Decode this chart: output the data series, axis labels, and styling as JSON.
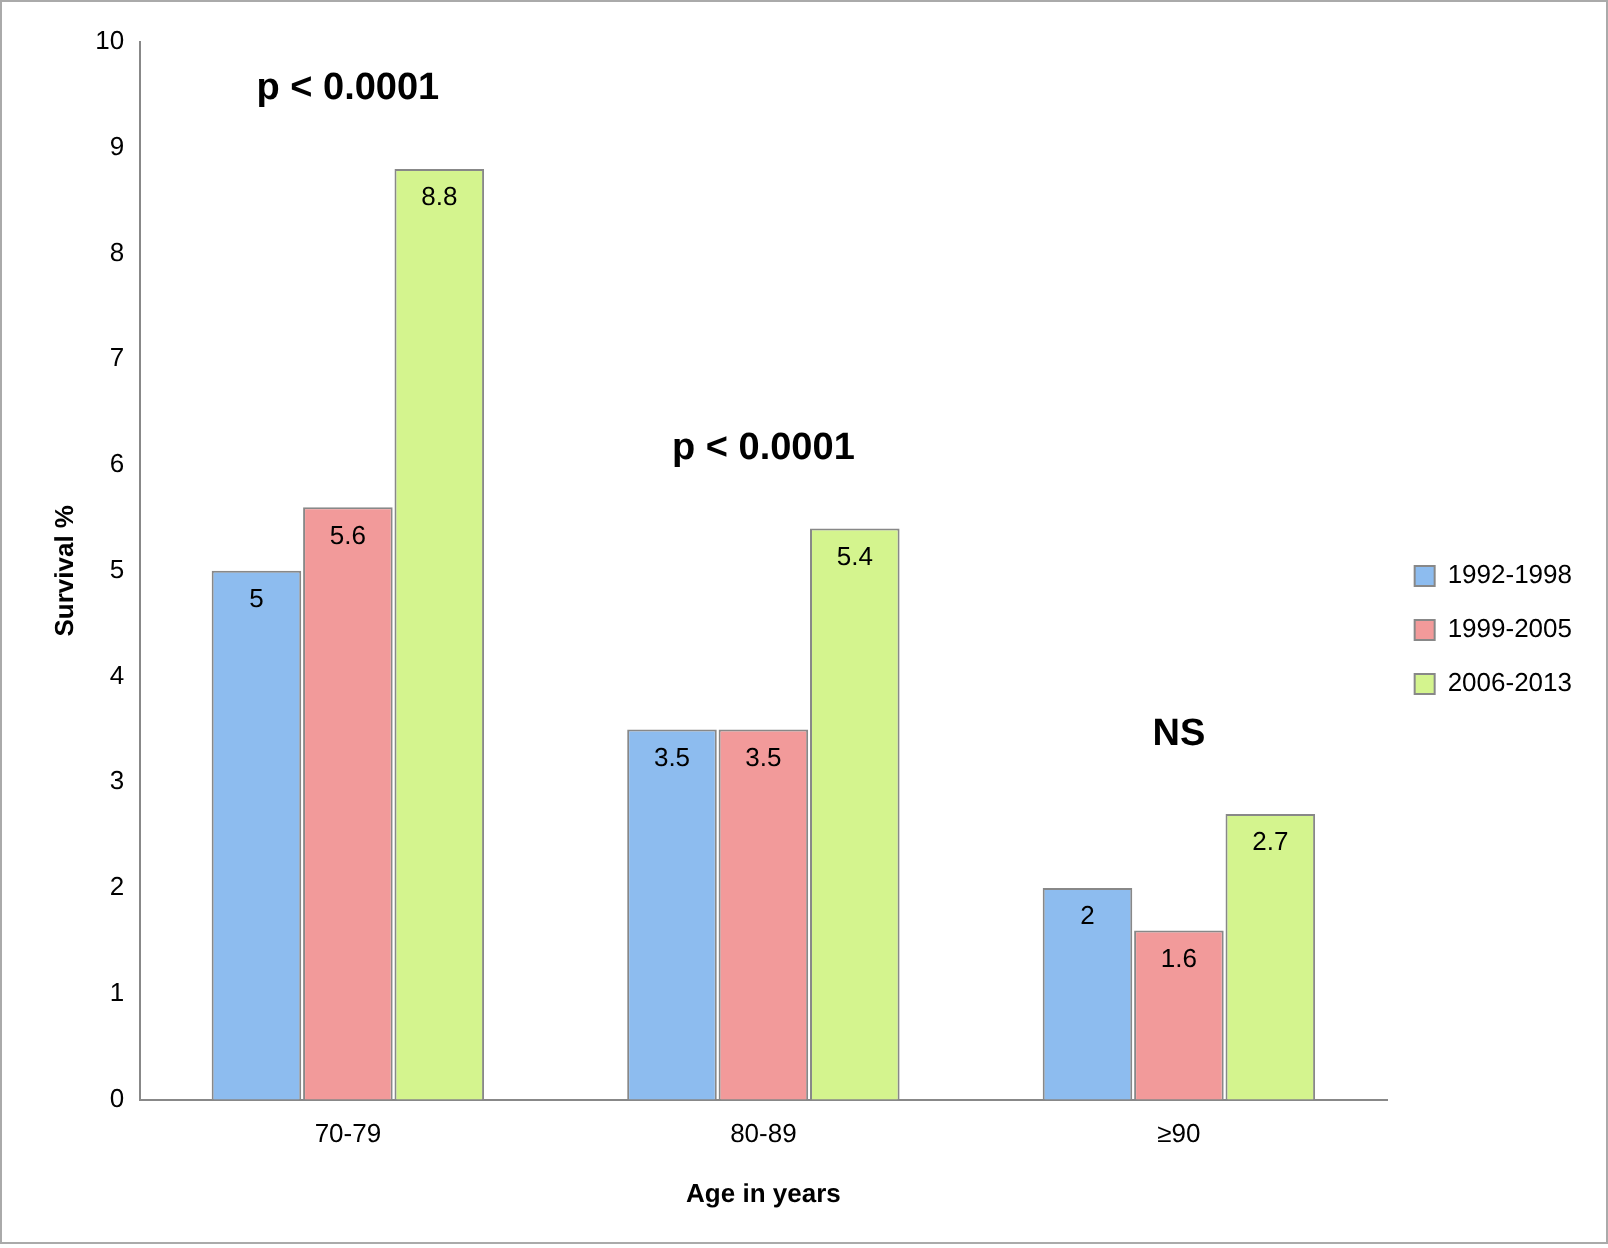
{
  "chart_data": {
    "type": "bar",
    "xlabel": "Age in years",
    "ylabel": "Survival %",
    "categories": [
      "70-79",
      "80-89",
      "≥90"
    ],
    "series": [
      {
        "name": "1992-1998",
        "color": "#8dbcef",
        "values": [
          5,
          3.5,
          2
        ]
      },
      {
        "name": "1999-2005",
        "color": "#f29a9a",
        "values": [
          5.6,
          3.5,
          1.6
        ]
      },
      {
        "name": "2006-2013",
        "color": "#d4f48e",
        "values": [
          8.8,
          5.4,
          2.7
        ]
      }
    ],
    "ylim": [
      0,
      10
    ],
    "yticks": [
      0,
      1,
      2,
      3,
      4,
      5,
      6,
      7,
      8,
      9,
      10
    ],
    "grid": false,
    "legend": "right",
    "data_labels": true,
    "annotations": [
      "p < 0.0001",
      "p < 0.0001",
      "NS"
    ]
  }
}
